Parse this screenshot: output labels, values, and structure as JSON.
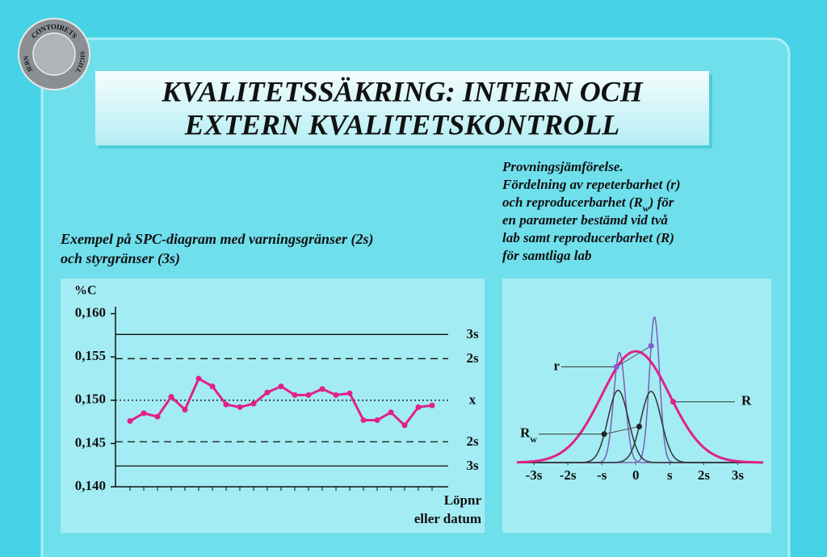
{
  "logo": {
    "texts": [
      "JERN",
      "CONTOIRETS",
      "SIGILL"
    ]
  },
  "header": {
    "title_lines": [
      "KVALITETSSÄKRING: INTERN OCH",
      "EXTERN KVALITETSKONTROLL"
    ]
  },
  "chart_data": [
    {
      "type": "line",
      "title_lines": [
        "Exempel på SPC-diagram med varningsgränser (2s)",
        "och styrgränser (3s)"
      ],
      "y_label": "%C",
      "x_label_lines": [
        "Löpnr",
        "eller datum"
      ],
      "categories": [
        null,
        null,
        null,
        null,
        null,
        null,
        null,
        null,
        null,
        null,
        null,
        null,
        null,
        null,
        null,
        null,
        null,
        null,
        null,
        null,
        null,
        null,
        null
      ],
      "values": [
        0.1476,
        0.1485,
        0.1481,
        0.1504,
        0.1489,
        0.1525,
        0.1516,
        0.1495,
        0.1492,
        0.1496,
        0.1509,
        0.1516,
        0.1506,
        0.1506,
        0.1513,
        0.1506,
        0.1508,
        0.1477,
        0.1477,
        0.1486,
        0.1471,
        0.1492,
        0.1494
      ],
      "color": "#e0218a",
      "ylim": [
        0.14,
        0.1608
      ],
      "yticks": [
        {
          "value": 0.14,
          "label": "0,140"
        },
        {
          "value": 0.145,
          "label": "0,145"
        },
        {
          "value": 0.15,
          "label": "0,150"
        },
        {
          "value": 0.155,
          "label": "0,155"
        },
        {
          "value": 0.16,
          "label": "0,160"
        }
      ],
      "reference_lines": [
        {
          "label": "3s",
          "value": 0.1576,
          "style": "solid"
        },
        {
          "label": "2s",
          "value": 0.1548,
          "style": "dashed"
        },
        {
          "label": "x",
          "value": 0.15,
          "style": "dotted"
        },
        {
          "label": "2s",
          "value": 0.1452,
          "style": "dashed"
        },
        {
          "label": "3s",
          "value": 0.1424,
          "style": "solid"
        }
      ]
    },
    {
      "type": "density",
      "title_lines": [
        "Provningsjämförelse.",
        "Fördelning av repeterbarhet (r)",
        "och reproducerbarhet (Rw) för",
        "en parameter bestämd vid två",
        "lab samt reproducerbarhet (R)",
        "för samtliga lab"
      ],
      "xlim": [
        -3.5,
        3.75
      ],
      "ylim": [
        0,
        1.35
      ],
      "xticks": [
        {
          "value": -3,
          "label": "-3s"
        },
        {
          "value": -2,
          "label": "-2s"
        },
        {
          "value": -1,
          "label": "-s"
        },
        0,
        {
          "value": 1,
          "label": "s"
        },
        {
          "value": 2,
          "label": "2s"
        },
        {
          "value": 3,
          "label": "3s"
        }
      ],
      "series": [
        {
          "name": "r",
          "color": "#7d5cb0",
          "curves": [
            {
              "mean": -0.48,
              "sd": 0.17,
              "height": 0.99
            },
            {
              "mean": 0.55,
              "sd": 0.15,
              "height": 1.31
            }
          ]
        },
        {
          "name": "Rw",
          "color": "#333333",
          "curves": [
            {
              "mean": -0.52,
              "sd": 0.3,
              "height": 0.65
            },
            {
              "mean": 0.45,
              "sd": 0.3,
              "height": 0.64
            }
          ]
        },
        {
          "name": "R",
          "color": "#e0218a",
          "curves": [
            {
              "mean": 0,
              "sd": 1,
              "height": 1
            }
          ]
        }
      ]
    }
  ]
}
